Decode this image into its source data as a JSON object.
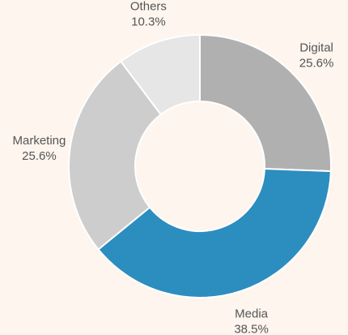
{
  "chart_data": {
    "type": "pie",
    "donut": true,
    "title": "",
    "slices": [
      {
        "label": "Digital",
        "value": 25.6,
        "value_label": "25.6%",
        "color": "#b0b0b0"
      },
      {
        "label": "Media",
        "value": 38.5,
        "value_label": "38.5%",
        "color": "#2c8dbf"
      },
      {
        "label": "Marketing",
        "value": 25.6,
        "value_label": "25.6%",
        "color": "#cdcdcd"
      },
      {
        "label": "Others",
        "value": 10.3,
        "value_label": "10.3%",
        "color": "#e6e6e6"
      }
    ],
    "start": "12 o'clock",
    "direction": "clockwise",
    "legend": "none",
    "background": "#fdf5ee"
  }
}
